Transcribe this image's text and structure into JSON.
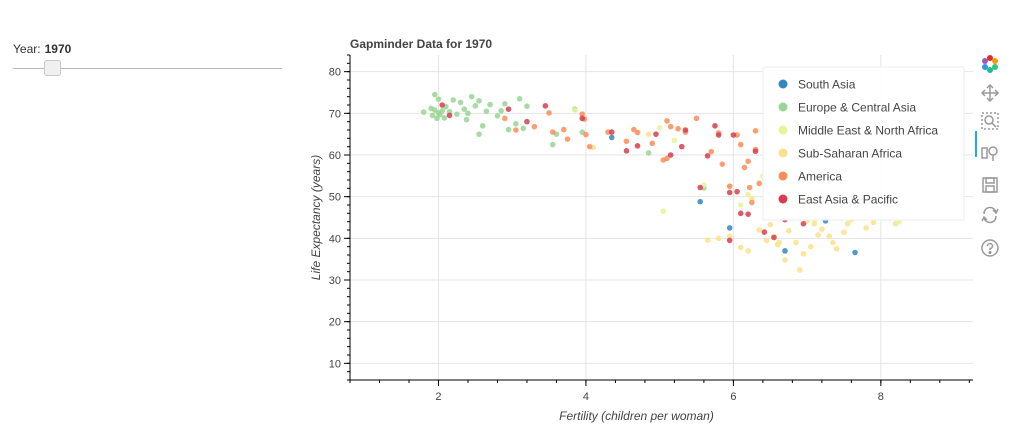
{
  "slider": {
    "title": "Year:",
    "value": "1970",
    "range": [
      1964,
      2013
    ]
  },
  "toolbar": {
    "tools": [
      "bokeh-logo-icon",
      "pan-icon",
      "box-zoom-icon",
      "wheel-zoom-icon",
      "save-icon",
      "reset-icon",
      "help-icon"
    ]
  },
  "chart_data": {
    "type": "scatter",
    "title": "Gapminder Data for 1970",
    "xlabel": "Fertility (children per woman)",
    "ylabel": "Life Expectancy (years)",
    "xlim": [
      0.8,
      9.25
    ],
    "ylim": [
      6,
      84
    ],
    "x_ticks": [
      2,
      4,
      6,
      8
    ],
    "y_ticks": [
      10,
      20,
      30,
      40,
      50,
      60,
      70,
      80
    ],
    "grid": true,
    "legend_position": "top-right",
    "series": [
      {
        "name": "South Asia",
        "color": "#3288bd",
        "points": [
          [
            4.35,
            64.2
          ],
          [
            5.55,
            48.8
          ],
          [
            5.95,
            42.5
          ],
          [
            7.25,
            44.2
          ],
          [
            6.7,
            37.0
          ],
          [
            7.65,
            36.6
          ]
        ]
      },
      {
        "name": "Europe & Central Asia",
        "color": "#99d594",
        "points": [
          [
            1.8,
            70.3
          ],
          [
            1.9,
            71.2
          ],
          [
            1.92,
            69.5
          ],
          [
            1.95,
            70.8
          ],
          [
            1.95,
            74.5
          ],
          [
            1.98,
            68.8
          ],
          [
            2.0,
            70.1
          ],
          [
            2.0,
            73.4
          ],
          [
            2.02,
            69.7
          ],
          [
            2.05,
            70.6
          ],
          [
            2.08,
            68.9
          ],
          [
            2.1,
            71.6
          ],
          [
            2.15,
            70.4
          ],
          [
            2.2,
            73.2
          ],
          [
            2.25,
            69.8
          ],
          [
            2.3,
            72.6
          ],
          [
            2.35,
            71.0
          ],
          [
            2.38,
            68.5
          ],
          [
            2.4,
            70.0
          ],
          [
            2.45,
            74.0
          ],
          [
            2.5,
            71.8
          ],
          [
            2.55,
            73.0
          ],
          [
            2.6,
            67.0
          ],
          [
            2.65,
            70.5
          ],
          [
            2.7,
            72.1
          ],
          [
            2.8,
            69.4
          ],
          [
            2.9,
            72.3
          ],
          [
            2.95,
            66.1
          ],
          [
            3.05,
            67.5
          ],
          [
            3.1,
            73.5
          ],
          [
            3.15,
            66.4
          ],
          [
            3.2,
            71.7
          ],
          [
            3.6,
            65.0
          ],
          [
            3.85,
            71.0
          ],
          [
            3.95,
            65.5
          ],
          [
            2.55,
            65.0
          ],
          [
            3.55,
            62.5
          ],
          [
            4.85,
            60.5
          ],
          [
            5.6,
            52.1
          ],
          [
            2.85,
            70.6
          ]
        ]
      },
      {
        "name": "Middle East & North Africa",
        "color": "#e6f598",
        "points": [
          [
            3.85,
            70.8
          ],
          [
            5.0,
            66.5
          ],
          [
            5.6,
            52.8
          ],
          [
            5.2,
            63.5
          ],
          [
            6.1,
            48.0
          ],
          [
            6.2,
            50.5
          ],
          [
            6.4,
            55.0
          ],
          [
            6.8,
            52.0
          ],
          [
            7.0,
            47.8
          ],
          [
            6.6,
            50.0
          ],
          [
            7.2,
            51.5
          ],
          [
            7.45,
            55.5
          ],
          [
            7.5,
            46.0
          ],
          [
            7.6,
            48.5
          ],
          [
            7.9,
            47.5
          ],
          [
            8.1,
            50.0
          ],
          [
            8.25,
            44.0
          ],
          [
            5.05,
            46.5
          ],
          [
            6.55,
            46.3
          ],
          [
            7.1,
            44.5
          ]
        ]
      },
      {
        "name": "Sub-Saharan Africa",
        "color": "#fee08b",
        "points": [
          [
            4.1,
            61.8
          ],
          [
            4.85,
            65.0
          ],
          [
            5.65,
            39.6
          ],
          [
            5.8,
            40.0
          ],
          [
            5.95,
            40.5
          ],
          [
            6.1,
            37.8
          ],
          [
            6.2,
            37.0
          ],
          [
            6.35,
            42.0
          ],
          [
            6.45,
            39.5
          ],
          [
            6.5,
            43.3
          ],
          [
            6.55,
            40.5
          ],
          [
            6.6,
            38.5
          ],
          [
            6.62,
            39.0
          ],
          [
            6.7,
            34.8
          ],
          [
            6.75,
            41.8
          ],
          [
            6.85,
            39.0
          ],
          [
            6.9,
            32.4
          ],
          [
            6.95,
            36.3
          ],
          [
            7.0,
            44.2
          ],
          [
            7.05,
            38.0
          ],
          [
            7.1,
            43.5
          ],
          [
            7.15,
            40.8
          ],
          [
            7.2,
            42.2
          ],
          [
            7.3,
            40.5
          ],
          [
            7.35,
            39.0
          ],
          [
            7.4,
            37.5
          ],
          [
            7.5,
            41.5
          ],
          [
            7.55,
            43.5
          ],
          [
            7.6,
            44.5
          ],
          [
            7.8,
            42.5
          ],
          [
            7.9,
            43.8
          ],
          [
            8.2,
            43.5
          ],
          [
            5.95,
            52.5
          ],
          [
            6.25,
            49.5
          ],
          [
            6.45,
            45.5
          ],
          [
            6.75,
            48.0
          ],
          [
            7.25,
            47.0
          ]
        ]
      },
      {
        "name": "America",
        "color": "#fc8d59",
        "points": [
          [
            2.9,
            68.8
          ],
          [
            3.05,
            66.0
          ],
          [
            3.3,
            66.8
          ],
          [
            3.5,
            70.1
          ],
          [
            3.55,
            65.5
          ],
          [
            3.7,
            66.1
          ],
          [
            3.75,
            63.8
          ],
          [
            3.95,
            69.8
          ],
          [
            3.98,
            68.6
          ],
          [
            4.05,
            62.0
          ],
          [
            4.3,
            65.5
          ],
          [
            4.55,
            63.3
          ],
          [
            4.65,
            66.1
          ],
          [
            4.7,
            65.4
          ],
          [
            4.9,
            62.8
          ],
          [
            5.05,
            58.8
          ],
          [
            5.1,
            59.2
          ],
          [
            5.15,
            66.8
          ],
          [
            5.25,
            66.3
          ],
          [
            5.35,
            65.5
          ],
          [
            5.5,
            68.8
          ],
          [
            5.7,
            60.8
          ],
          [
            5.8,
            65.3
          ],
          [
            5.85,
            57.8
          ],
          [
            5.95,
            52.5
          ],
          [
            6.05,
            64.8
          ],
          [
            6.1,
            62.5
          ],
          [
            6.15,
            57.0
          ],
          [
            6.2,
            58.5
          ],
          [
            6.22,
            52.2
          ],
          [
            6.25,
            48.6
          ],
          [
            6.3,
            61.3
          ],
          [
            6.3,
            65.8
          ],
          [
            6.35,
            53.2
          ],
          [
            4.0,
            64.9
          ],
          [
            5.1,
            68.2
          ]
        ]
      },
      {
        "name": "East Asia & Pacific",
        "color": "#d53e4f",
        "points": [
          [
            2.05,
            72.0
          ],
          [
            2.15,
            69.5
          ],
          [
            2.95,
            71.0
          ],
          [
            3.2,
            68.0
          ],
          [
            3.45,
            71.8
          ],
          [
            3.95,
            68.8
          ],
          [
            4.35,
            65.5
          ],
          [
            4.55,
            61.0
          ],
          [
            4.7,
            62.2
          ],
          [
            4.95,
            65.0
          ],
          [
            5.15,
            60.0
          ],
          [
            5.3,
            62.0
          ],
          [
            5.55,
            52.2
          ],
          [
            5.65,
            59.8
          ],
          [
            5.75,
            67.0
          ],
          [
            5.8,
            64.8
          ],
          [
            5.95,
            51.0
          ],
          [
            6.0,
            64.8
          ],
          [
            6.05,
            51.2
          ],
          [
            6.1,
            46.0
          ],
          [
            6.2,
            45.8
          ],
          [
            6.3,
            60.9
          ],
          [
            6.42,
            41.5
          ],
          [
            5.95,
            39.5
          ],
          [
            6.55,
            40.2
          ],
          [
            6.7,
            44.5
          ],
          [
            6.95,
            43.5
          ],
          [
            5.35,
            66.0
          ]
        ]
      }
    ]
  }
}
